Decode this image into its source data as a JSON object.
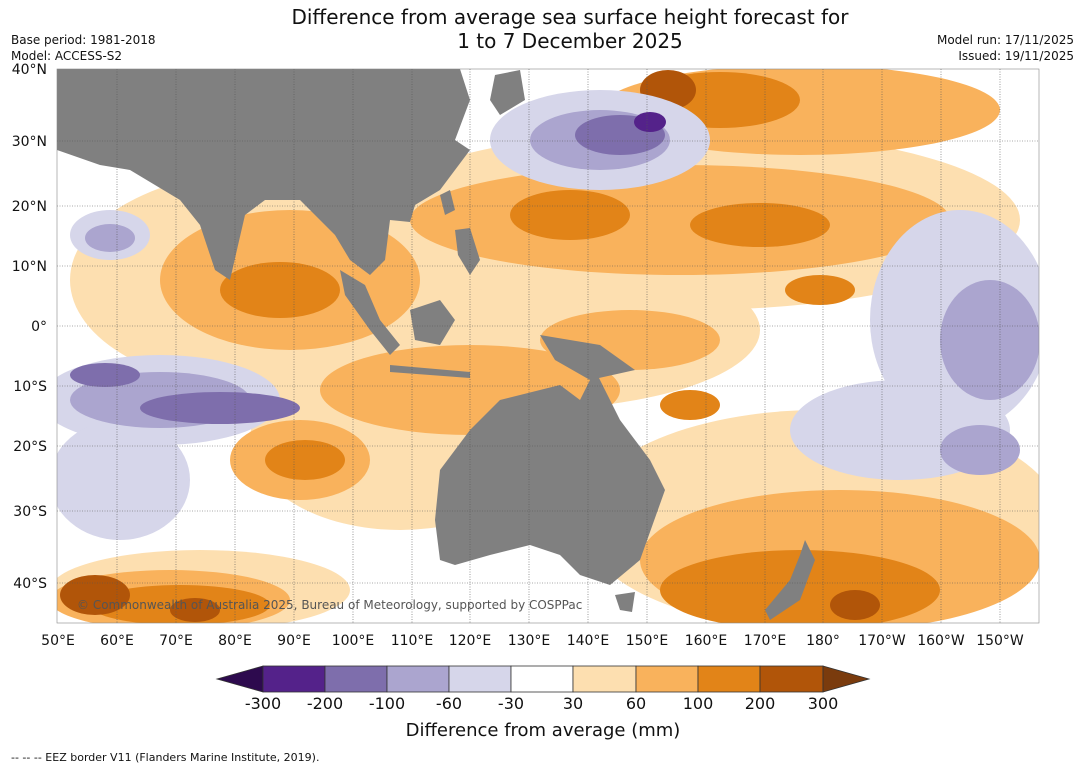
{
  "title": {
    "line1": "Difference from average sea surface height forecast for",
    "line2": "1 to 7 December 2025"
  },
  "meta": {
    "base_period": "Base period: 1981-2018",
    "model": "Model: ACCESS-S2",
    "model_run": "Model run: 17/11/2025",
    "issued": "Issued: 19/11/2025"
  },
  "map": {
    "lat_labels": [
      "40°N",
      "30°N",
      "20°N",
      "10°N",
      "0°",
      "10°S",
      "20°S",
      "30°S",
      "40°S"
    ],
    "lon_labels": [
      "50°E",
      "60°E",
      "70°E",
      "80°E",
      "90°E",
      "100°E",
      "110°E",
      "120°E",
      "130°E",
      "140°E",
      "150°E",
      "160°E",
      "170°E",
      "180°",
      "170°W",
      "160°W",
      "150°W"
    ],
    "copyright": "© Commonwealth of Australia 2025, Bureau of Meteorology, supported by COSPPac",
    "land_color": "#808080"
  },
  "colorbar": {
    "ticks": [
      "-300",
      "-200",
      "-100",
      "-60",
      "-30",
      "30",
      "60",
      "100",
      "200",
      "300"
    ],
    "colors": [
      "#2d0a4e",
      "#54228a",
      "#7e6eac",
      "#aba5cf",
      "#d6d6ea",
      "#ffffff",
      "#fddfb0",
      "#f9b25c",
      "#e28418",
      "#b15509",
      "#7a3b0d"
    ],
    "title": "Difference from average (mm)"
  },
  "footnote": "--  --  -- EEZ border V11 (Flanders Marine Institute, 2019)."
}
